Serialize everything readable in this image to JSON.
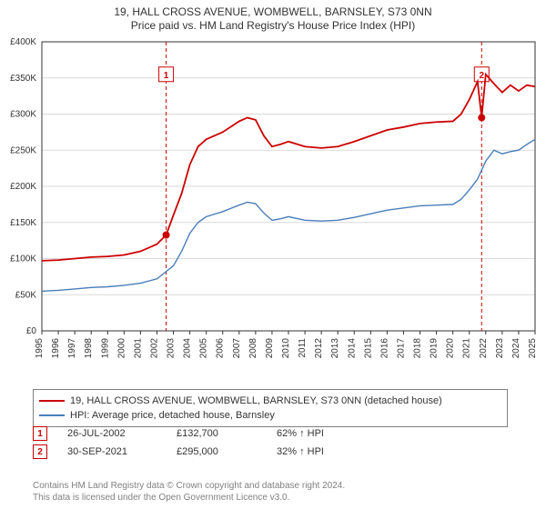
{
  "title": {
    "line1": "19, HALL CROSS AVENUE, WOMBWELL, BARNSLEY, S73 0NN",
    "line2": "Price paid vs. HM Land Registry's House Price Index (HPI)"
  },
  "title_fontsize": 12,
  "chart": {
    "type": "line",
    "plot_bg": "#ffffff",
    "axis_color": "#333333",
    "grid_color": "#d9d9d9",
    "tick_fontsize": 10,
    "tick_color": "#333333",
    "ylabel_prefix": "£",
    "ylim": [
      0,
      400000
    ],
    "ytick_step": 50000,
    "yticks": [
      "£0",
      "£50K",
      "£100K",
      "£150K",
      "£200K",
      "£250K",
      "£300K",
      "£350K",
      "£400K"
    ],
    "xlim": [
      1995,
      2025
    ],
    "xticks": [
      1995,
      1996,
      1997,
      1998,
      1999,
      2000,
      2001,
      2002,
      2003,
      2004,
      2005,
      2006,
      2007,
      2008,
      2009,
      2010,
      2011,
      2012,
      2013,
      2014,
      2015,
      2016,
      2017,
      2018,
      2019,
      2020,
      2021,
      2022,
      2023,
      2024,
      2025
    ],
    "xticklabel_rotation": -90,
    "series": [
      {
        "name": "property",
        "label": "19, HALL CROSS AVENUE, WOMBWELL, BARNSLEY, S73 0NN (detached house)",
        "color": "#cc0000",
        "line_width": 1.8,
        "data": [
          [
            1995,
            97000
          ],
          [
            1996,
            98000
          ],
          [
            1997,
            100000
          ],
          [
            1998,
            102000
          ],
          [
            1999,
            103000
          ],
          [
            2000,
            105000
          ],
          [
            2001,
            110000
          ],
          [
            2002,
            120000
          ],
          [
            2002.56,
            132700
          ],
          [
            2003,
            160000
          ],
          [
            2003.5,
            190000
          ],
          [
            2004,
            230000
          ],
          [
            2004.5,
            255000
          ],
          [
            2005,
            265000
          ],
          [
            2006,
            275000
          ],
          [
            2007,
            290000
          ],
          [
            2007.5,
            295000
          ],
          [
            2008,
            292000
          ],
          [
            2008.5,
            270000
          ],
          [
            2009,
            255000
          ],
          [
            2009.5,
            258000
          ],
          [
            2010,
            262000
          ],
          [
            2011,
            255000
          ],
          [
            2012,
            253000
          ],
          [
            2013,
            255000
          ],
          [
            2014,
            262000
          ],
          [
            2015,
            270000
          ],
          [
            2016,
            278000
          ],
          [
            2017,
            282000
          ],
          [
            2018,
            287000
          ],
          [
            2019,
            289000
          ],
          [
            2020,
            290000
          ],
          [
            2020.5,
            300000
          ],
          [
            2021,
            320000
          ],
          [
            2021.5,
            345000
          ],
          [
            2021.75,
            295000
          ],
          [
            2022,
            355000
          ],
          [
            2022.5,
            342000
          ],
          [
            2023,
            330000
          ],
          [
            2023.5,
            340000
          ],
          [
            2024,
            332000
          ],
          [
            2024.5,
            340000
          ],
          [
            2025,
            338000
          ]
        ]
      },
      {
        "name": "hpi",
        "label": "HPI: Average price, detached house, Barnsley",
        "color": "#4a7ebb",
        "line_width": 1.4,
        "data": [
          [
            1995,
            55000
          ],
          [
            1996,
            56000
          ],
          [
            1997,
            58000
          ],
          [
            1998,
            60000
          ],
          [
            1999,
            61000
          ],
          [
            2000,
            63000
          ],
          [
            2001,
            66000
          ],
          [
            2002,
            72000
          ],
          [
            2003,
            90000
          ],
          [
            2003.5,
            110000
          ],
          [
            2004,
            135000
          ],
          [
            2004.5,
            150000
          ],
          [
            2005,
            158000
          ],
          [
            2006,
            165000
          ],
          [
            2007,
            174000
          ],
          [
            2007.5,
            178000
          ],
          [
            2008,
            176000
          ],
          [
            2008.5,
            163000
          ],
          [
            2009,
            153000
          ],
          [
            2009.5,
            155000
          ],
          [
            2010,
            158000
          ],
          [
            2011,
            153000
          ],
          [
            2012,
            152000
          ],
          [
            2013,
            153000
          ],
          [
            2014,
            157000
          ],
          [
            2015,
            162000
          ],
          [
            2016,
            167000
          ],
          [
            2017,
            170000
          ],
          [
            2018,
            173000
          ],
          [
            2019,
            174000
          ],
          [
            2020,
            175000
          ],
          [
            2020.5,
            182000
          ],
          [
            2021,
            195000
          ],
          [
            2021.5,
            210000
          ],
          [
            2022,
            235000
          ],
          [
            2022.5,
            250000
          ],
          [
            2023,
            245000
          ],
          [
            2023.5,
            248000
          ],
          [
            2024,
            250000
          ],
          [
            2024.5,
            258000
          ],
          [
            2025,
            265000
          ]
        ]
      }
    ],
    "sale_markers": [
      {
        "n": "1",
        "x": 2002.56,
        "y": 132700,
        "date": "26-JUL-2002",
        "price": "£132,700",
        "pct": "62% ↑ HPI",
        "dot_color": "#cc0000",
        "line_dash": "4 3",
        "line_color": "#cc0000",
        "badge_border": "#cc0000",
        "badge_text": "#cc0000",
        "badge_y": 355000
      },
      {
        "n": "2",
        "x": 2021.75,
        "y": 295000,
        "date": "30-SEP-2021",
        "price": "£295,000",
        "pct": "32% ↑ HPI",
        "dot_color": "#cc0000",
        "line_dash": "4 3",
        "line_color": "#cc0000",
        "badge_border": "#cc0000",
        "badge_text": "#cc0000",
        "badge_y": 355000
      }
    ]
  },
  "legend": {
    "border_color": "#808080",
    "fontsize": 11
  },
  "license": {
    "line1": "Contains HM Land Registry data © Crown copyright and database right 2024.",
    "line2": "This data is licensed under the Open Government Licence v3.0.",
    "color": "#808080",
    "fontsize": 10
  }
}
